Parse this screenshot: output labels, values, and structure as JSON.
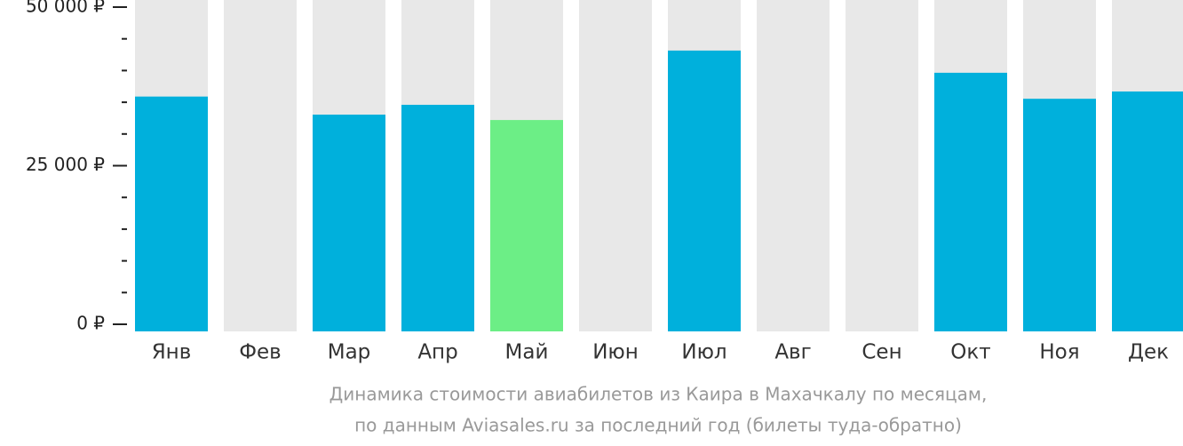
{
  "chart_data": {
    "type": "bar",
    "caption": [
      "Динамика стоимости авиабилетов из Каира в Махачкалу по месяцам,",
      "по данным Aviasales.ru за последний год (билеты туда-обратно)"
    ],
    "categories": [
      "Янв",
      "Фев",
      "Мар",
      "Апр",
      "Май",
      "Июн",
      "Июл",
      "Авг",
      "Сен",
      "Окт",
      "Ноя",
      "Дек"
    ],
    "values": [
      35900,
      null,
      33050,
      34600,
      32200,
      null,
      43150,
      null,
      null,
      39650,
      35550,
      36700
    ],
    "colors": [
      "#00b0dc",
      "#00b0dc",
      "#00b0dc",
      "#00b0dc",
      "#6cee86",
      "#00b0dc",
      "#00b0dc",
      "#00b0dc",
      "#00b0dc",
      "#00b0dc",
      "#00b0dc",
      "#00b0dc"
    ],
    "background_color": "#e8e8e8",
    "ylim": [
      0,
      50000
    ],
    "yticks": [
      {
        "value": 0,
        "label": "0 ₽"
      },
      {
        "value": 25000,
        "label": "25 000 ₽"
      },
      {
        "value": 50000,
        "label": "50 000 ₽"
      }
    ]
  }
}
